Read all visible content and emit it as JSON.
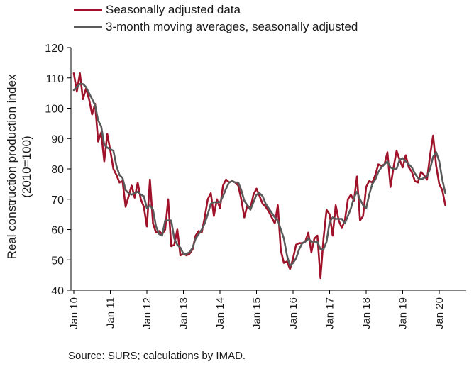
{
  "legend": {
    "series1_label": "Seasonally adjusted data",
    "series2_label": "3-month moving averages, seasonally adjusted"
  },
  "source": "Source: SURS; calculations by IMAD.",
  "chart_data": {
    "type": "line",
    "ylabel_line1": "Real construction production index",
    "ylabel_line2": "(2010=100)",
    "ylim": [
      40,
      120
    ],
    "yticks": [
      40,
      50,
      60,
      70,
      80,
      90,
      100,
      110,
      120
    ],
    "x_start": "Jan 10",
    "months_per_point": 1,
    "xtick_labels": [
      "Jan 10",
      "Jan 11",
      "Jan 12",
      "Jan 13",
      "Jan 14",
      "Jan 15",
      "Jan 16",
      "Jan 17",
      "Jan 18",
      "Jan 19",
      "Jan 20"
    ],
    "grid": false,
    "legend_position": "top-left",
    "colors": {
      "series1": "#a0122a",
      "series2": "#5a5a5a",
      "axis": "#000000"
    },
    "series": [
      {
        "name": "Seasonally adjusted data",
        "values": [
          111.5,
          105.5,
          111.5,
          103,
          106.5,
          103,
          98,
          101.5,
          89,
          92,
          82.5,
          91.5,
          86,
          80,
          78,
          75.5,
          76,
          67.5,
          71,
          74.5,
          70.5,
          75.5,
          70,
          67.5,
          61,
          76.5,
          62,
          59,
          59.5,
          58.5,
          60,
          70,
          54.5,
          55,
          60,
          51.5,
          52,
          51.5,
          52,
          53.5,
          58,
          59.5,
          59,
          64,
          70,
          72,
          64.5,
          70,
          67,
          74.5,
          76.5,
          75.5,
          76,
          75.5,
          74.5,
          70,
          64,
          68,
          67,
          71.5,
          73.5,
          71,
          68.5,
          67.5,
          66,
          64,
          62,
          68,
          53,
          49,
          49.5,
          47,
          50.5,
          55,
          55.5,
          55.5,
          56,
          59,
          52.5,
          57,
          58,
          44,
          57,
          66.5,
          65,
          58,
          68,
          63,
          60.5,
          63,
          70,
          71.5,
          69.5,
          77.5,
          63,
          64.5,
          74,
          76,
          75.5,
          78,
          81.5,
          81,
          81.5,
          85.5,
          74,
          80.5,
          86,
          83,
          80.5,
          84.5,
          80.5,
          79,
          76,
          75.5,
          79,
          78,
          76.5,
          84.5,
          91,
          81,
          75,
          73,
          68
        ]
      },
      {
        "name": "3-month moving averages, seasonally adjusted",
        "values": [
          106,
          107,
          108,
          108,
          107,
          105,
          103,
          101,
          96,
          94,
          88,
          87,
          86.5,
          86,
          81,
          78,
          77,
          73,
          72,
          71.5,
          72,
          72.5,
          71.5,
          71,
          67,
          68,
          66.5,
          61,
          58.5,
          58,
          63,
          63,
          63,
          57,
          55,
          54,
          52,
          52,
          52.5,
          54,
          57,
          58.5,
          60,
          62,
          65,
          68.5,
          69,
          69,
          69,
          71,
          73.5,
          75.5,
          76,
          75.5,
          75.5,
          73,
          69.5,
          68,
          66.5,
          69,
          71.5,
          72,
          71,
          68.5,
          67,
          65.5,
          64,
          63,
          60,
          57,
          51.5,
          48,
          49,
          50.5,
          53.5,
          55.5,
          56,
          57,
          56,
          56,
          56,
          53.5,
          53.5,
          56,
          62.5,
          64,
          63.5,
          63.5,
          63.5,
          62,
          64.5,
          67,
          70.5,
          72.5,
          70,
          68,
          67,
          71.5,
          75,
          76.5,
          79,
          80.5,
          81.5,
          82.5,
          80.5,
          80,
          80,
          83,
          83.5,
          82.5,
          81.5,
          80.5,
          78.5,
          77,
          76.5,
          77,
          77.5,
          80,
          84,
          85.5,
          82.5,
          76.5,
          72
        ]
      }
    ]
  }
}
